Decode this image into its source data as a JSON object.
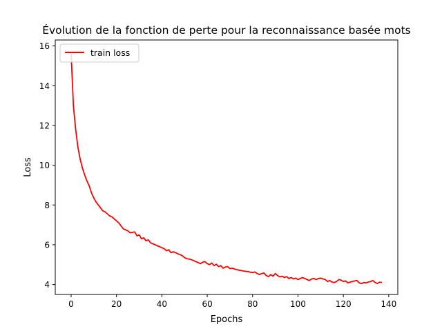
{
  "chart_data": {
    "type": "line",
    "title": "Évolution de la fonction de perte pour la reconnaissance basée mots",
    "xlabel": "Epochs",
    "ylabel": "Loss",
    "xlim": [
      -7,
      144
    ],
    "ylim": [
      3.5,
      16.3
    ],
    "xticks": [
      0,
      20,
      40,
      60,
      80,
      100,
      120,
      140
    ],
    "yticks": [
      4,
      6,
      8,
      10,
      12,
      14,
      16
    ],
    "grid": false,
    "legend_position": "top-left",
    "series": [
      {
        "name": "train loss",
        "color": "#ff0000",
        "x": [
          0,
          1,
          2,
          3,
          4,
          5,
          6,
          7,
          8,
          9,
          10,
          11,
          12,
          13,
          14,
          15,
          16,
          17,
          18,
          19,
          20,
          21,
          22,
          23,
          24,
          25,
          26,
          27,
          28,
          29,
          30,
          31,
          32,
          33,
          34,
          35,
          36,
          37,
          38,
          39,
          40,
          41,
          42,
          43,
          44,
          45,
          46,
          47,
          48,
          49,
          50,
          51,
          52,
          53,
          54,
          55,
          56,
          57,
          58,
          59,
          60,
          61,
          62,
          63,
          64,
          65,
          66,
          67,
          68,
          69,
          70,
          71,
          72,
          73,
          74,
          75,
          76,
          77,
          78,
          79,
          80,
          81,
          82,
          83,
          84,
          85,
          86,
          87,
          88,
          89,
          90,
          91,
          92,
          93,
          94,
          95,
          96,
          97,
          98,
          99,
          100,
          101,
          102,
          103,
          104,
          105,
          106,
          107,
          108,
          109,
          110,
          111,
          112,
          113,
          114,
          115,
          116,
          117,
          118,
          119,
          120,
          121,
          122,
          123,
          124,
          125,
          126,
          127,
          128,
          129,
          130,
          131,
          132,
          133,
          134,
          135,
          136,
          137
        ],
        "values": [
          15.6,
          13.0,
          11.8,
          10.9,
          10.3,
          9.85,
          9.5,
          9.2,
          8.95,
          8.6,
          8.35,
          8.15,
          8.0,
          7.85,
          7.7,
          7.65,
          7.55,
          7.45,
          7.4,
          7.3,
          7.2,
          7.1,
          6.95,
          6.8,
          6.75,
          6.7,
          6.6,
          6.62,
          6.65,
          6.45,
          6.5,
          6.3,
          6.35,
          6.2,
          6.25,
          6.1,
          6.05,
          6.0,
          5.95,
          5.9,
          5.85,
          5.8,
          5.7,
          5.75,
          5.6,
          5.65,
          5.6,
          5.55,
          5.5,
          5.45,
          5.35,
          5.3,
          5.28,
          5.25,
          5.2,
          5.15,
          5.1,
          5.05,
          5.12,
          5.15,
          5.05,
          5.0,
          5.08,
          4.95,
          5.02,
          4.9,
          4.95,
          4.82,
          4.88,
          4.9,
          4.8,
          4.82,
          4.78,
          4.75,
          4.72,
          4.7,
          4.68,
          4.66,
          4.65,
          4.62,
          4.6,
          4.63,
          4.55,
          4.5,
          4.55,
          4.58,
          4.45,
          4.4,
          4.5,
          4.42,
          4.55,
          4.45,
          4.38,
          4.42,
          4.35,
          4.4,
          4.3,
          4.35,
          4.28,
          4.32,
          4.25,
          4.3,
          4.35,
          4.3,
          4.25,
          4.2,
          4.28,
          4.3,
          4.25,
          4.3,
          4.32,
          4.28,
          4.25,
          4.15,
          4.2,
          4.12,
          4.1,
          4.15,
          4.25,
          4.22,
          4.15,
          4.18,
          4.08,
          4.12,
          4.15,
          4.18,
          4.2,
          4.08,
          4.05,
          4.1,
          4.08,
          4.12,
          4.15,
          4.2,
          4.1,
          4.05,
          4.12,
          4.1
        ]
      }
    ]
  }
}
